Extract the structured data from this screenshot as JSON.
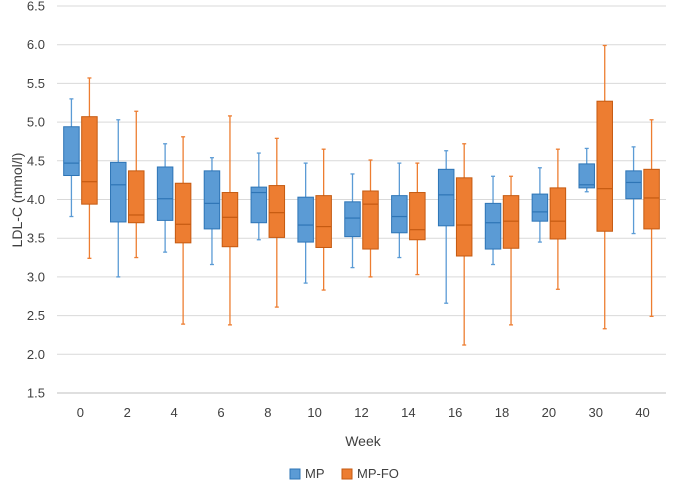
{
  "chart_data": {
    "type": "boxplot",
    "title": "",
    "xlabel": "Week",
    "ylabel": "LDL-C (mmol/l)",
    "ylim": [
      1.5,
      6.5
    ],
    "yticks": [
      1.5,
      2.0,
      2.5,
      3.0,
      3.5,
      4.0,
      4.5,
      5.0,
      5.5,
      6.0,
      6.5
    ],
    "ytick_labels": [
      "1.5",
      "2.0",
      "2.5",
      "3.0",
      "3.5",
      "4.0",
      "4.5",
      "5.0",
      "5.5",
      "6.0",
      "6.5"
    ],
    "grid": true,
    "legend_position": "bottom",
    "categories": [
      "0",
      "2",
      "4",
      "6",
      "8",
      "10",
      "12",
      "14",
      "16",
      "18",
      "20",
      "30",
      "40"
    ],
    "series": [
      {
        "name": "MP",
        "color": "#5B9BD5",
        "edge": "#2E75B6",
        "min": [
          3.78,
          3.0,
          3.32,
          3.16,
          3.48,
          2.92,
          3.12,
          3.25,
          2.66,
          3.16,
          3.45,
          4.1,
          3.56
        ],
        "q1": [
          4.31,
          3.71,
          3.73,
          3.62,
          3.7,
          3.45,
          3.52,
          3.57,
          3.66,
          3.36,
          3.72,
          4.15,
          4.01
        ],
        "median": [
          4.47,
          4.19,
          4.01,
          3.95,
          4.09,
          3.67,
          3.76,
          3.78,
          4.06,
          3.7,
          3.84,
          4.19,
          4.22
        ],
        "q3": [
          4.94,
          4.48,
          4.42,
          4.37,
          4.16,
          4.03,
          3.97,
          4.05,
          4.39,
          3.95,
          4.07,
          4.46,
          4.37
        ],
        "max": [
          5.3,
          5.03,
          4.72,
          4.54,
          4.6,
          4.47,
          4.33,
          4.47,
          4.63,
          4.3,
          4.41,
          4.66,
          4.68
        ]
      },
      {
        "name": "MP-FO",
        "color": "#ED7D31",
        "edge": "#C55A11",
        "min": [
          3.24,
          3.25,
          2.39,
          2.38,
          2.61,
          2.83,
          3.0,
          3.03,
          2.12,
          2.38,
          2.84,
          2.33,
          2.49
        ],
        "q1": [
          3.94,
          3.7,
          3.44,
          3.39,
          3.51,
          3.38,
          3.36,
          3.48,
          3.27,
          3.37,
          3.49,
          3.59,
          3.62
        ],
        "median": [
          4.23,
          3.8,
          3.68,
          3.77,
          3.83,
          3.65,
          3.94,
          3.61,
          3.67,
          3.72,
          3.72,
          4.14,
          4.02
        ],
        "q3": [
          5.07,
          4.37,
          4.21,
          4.09,
          4.18,
          4.05,
          4.11,
          4.09,
          4.28,
          4.05,
          4.15,
          5.27,
          4.39
        ],
        "max": [
          5.57,
          5.14,
          4.81,
          5.08,
          4.79,
          4.65,
          4.51,
          4.47,
          4.72,
          4.3,
          4.65,
          5.99,
          5.03
        ]
      }
    ]
  }
}
